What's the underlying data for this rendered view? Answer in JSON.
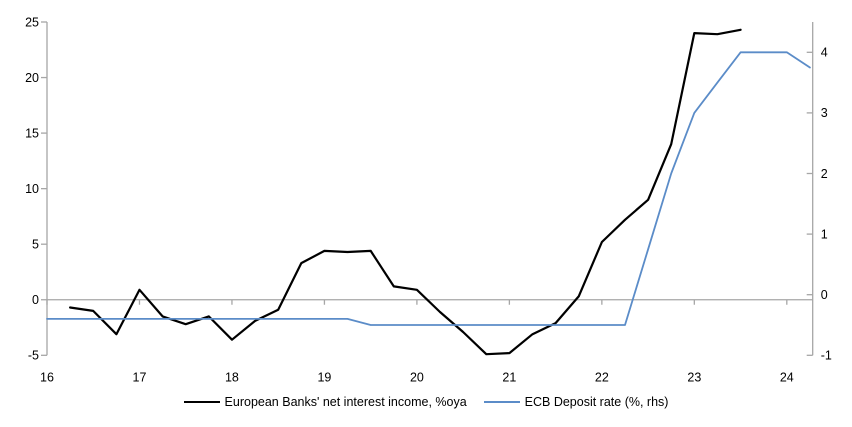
{
  "colors": {
    "axis": "#a6a6a6",
    "zero_line": "#a6a6a6",
    "nii_line": "#000000",
    "ecb_line": "#5b8cc8",
    "text": "#000000",
    "background": "#ffffff"
  },
  "chart_data": {
    "type": "line",
    "title": "",
    "xlabel": "",
    "ylabel_left": "",
    "ylabel_right": "",
    "grid": false,
    "zero_line": true,
    "legend_position": "bottom",
    "x_axis": {
      "min": 16,
      "max": 24.28,
      "ticks": [
        16,
        17,
        18,
        19,
        20,
        21,
        22,
        23,
        24
      ]
    },
    "left_axis": {
      "min": -5,
      "max": 25,
      "ticks": [
        -5,
        0,
        5,
        10,
        15,
        20,
        25
      ]
    },
    "right_axis": {
      "min": -1,
      "max": 4.5,
      "ticks": [
        -1,
        0,
        1,
        2,
        3,
        4
      ]
    },
    "series": [
      {
        "name": "European Banks' net interest income, %oya",
        "axis": "left",
        "color": "#000000",
        "x": [
          16.25,
          16.5,
          16.75,
          17.0,
          17.25,
          17.5,
          17.75,
          18.0,
          18.25,
          18.5,
          18.75,
          19.0,
          19.25,
          19.5,
          19.75,
          20.0,
          20.25,
          20.5,
          20.75,
          21.0,
          21.25,
          21.5,
          21.75,
          22.0,
          22.25,
          22.5,
          22.75,
          23.0,
          23.25,
          23.5
        ],
        "values": [
          -0.7,
          -1.0,
          -3.1,
          0.9,
          -1.5,
          -2.2,
          -1.5,
          -3.6,
          -1.9,
          -0.9,
          3.3,
          4.4,
          4.3,
          4.4,
          1.2,
          0.9,
          -1.1,
          -2.9,
          -4.9,
          -4.8,
          -3.1,
          -2.1,
          0.3,
          5.2,
          7.2,
          9.0,
          14.0,
          24.0,
          23.9,
          24.3
        ]
      },
      {
        "name": "ECB Deposit rate (%, rhs)",
        "axis": "right",
        "color": "#5b8cc8",
        "x": [
          16.0,
          16.25,
          16.5,
          16.75,
          17.0,
          17.25,
          17.5,
          17.75,
          18.0,
          18.25,
          18.5,
          18.75,
          19.0,
          19.25,
          19.5,
          19.75,
          20.0,
          20.25,
          20.5,
          20.75,
          21.0,
          21.25,
          21.5,
          21.75,
          22.0,
          22.25,
          22.5,
          22.75,
          23.0,
          23.25,
          23.5,
          23.75,
          24.0,
          24.25
        ],
        "values": [
          -0.4,
          -0.4,
          -0.4,
          -0.4,
          -0.4,
          -0.4,
          -0.4,
          -0.4,
          -0.4,
          -0.4,
          -0.4,
          -0.4,
          -0.4,
          -0.4,
          -0.5,
          -0.5,
          -0.5,
          -0.5,
          -0.5,
          -0.5,
          -0.5,
          -0.5,
          -0.5,
          -0.5,
          -0.5,
          -0.5,
          0.75,
          2.0,
          3.0,
          3.5,
          4.0,
          4.0,
          4.0,
          3.75
        ]
      }
    ]
  }
}
